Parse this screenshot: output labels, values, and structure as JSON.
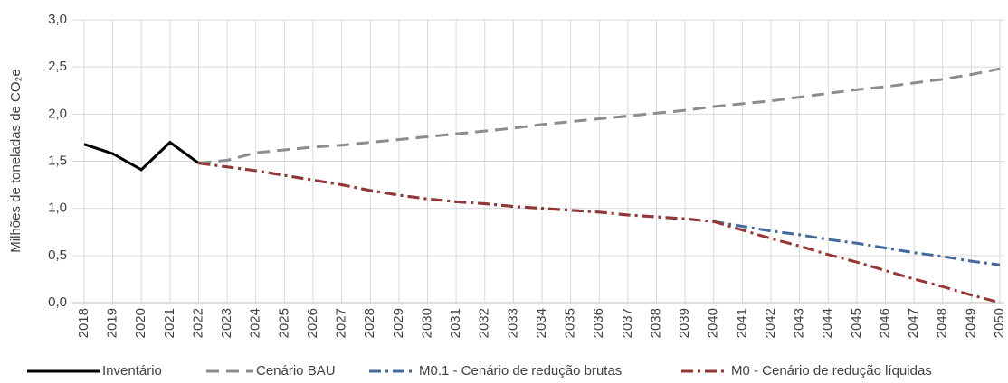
{
  "chart_data": {
    "type": "line",
    "ylabel": "Milhões de toneladas de CO₂e",
    "categories": [
      "2018",
      "2019",
      "2020",
      "2021",
      "2022",
      "2023",
      "2024",
      "2025",
      "2026",
      "2027",
      "2028",
      "2029",
      "2030",
      "2031",
      "2032",
      "2033",
      "2034",
      "2035",
      "2036",
      "2037",
      "2038",
      "2039",
      "2040",
      "2041",
      "2042",
      "2043",
      "2044",
      "2045",
      "2046",
      "2047",
      "2048",
      "2049",
      "2050"
    ],
    "series": [
      {
        "name": "Inventário",
        "color": "#000000",
        "dash": "solid",
        "values": [
          1.68,
          1.58,
          1.41,
          1.7,
          1.48,
          null,
          null,
          null,
          null,
          null,
          null,
          null,
          null,
          null,
          null,
          null,
          null,
          null,
          null,
          null,
          null,
          null,
          null,
          null,
          null,
          null,
          null,
          null,
          null,
          null,
          null,
          null,
          null
        ]
      },
      {
        "name": "Cenário BAU",
        "color": "#8c8c8c",
        "dash": "dashed",
        "values": [
          null,
          null,
          null,
          null,
          1.48,
          1.51,
          1.59,
          1.62,
          1.65,
          1.67,
          1.7,
          1.73,
          1.76,
          1.79,
          1.82,
          1.85,
          1.89,
          1.92,
          1.95,
          1.98,
          2.01,
          2.04,
          2.08,
          2.11,
          2.14,
          2.18,
          2.22,
          2.26,
          2.29,
          2.33,
          2.37,
          2.42,
          2.48
        ]
      },
      {
        "name": "M0.1 - Cenário de redução brutas",
        "color": "#44699a",
        "dash": "dashdot",
        "values": [
          null,
          null,
          null,
          null,
          1.48,
          1.44,
          1.4,
          1.35,
          1.3,
          1.25,
          1.19,
          1.14,
          1.1,
          1.07,
          1.05,
          1.02,
          1.0,
          0.98,
          0.96,
          0.93,
          0.91,
          0.89,
          0.86,
          0.81,
          0.76,
          0.72,
          0.67,
          0.63,
          0.58,
          0.53,
          0.49,
          0.44,
          0.4
        ]
      },
      {
        "name": "M0 - Cenário de redução líquidas",
        "color": "#953735",
        "dash": "dashdot",
        "values": [
          null,
          null,
          null,
          null,
          1.48,
          1.44,
          1.4,
          1.35,
          1.3,
          1.25,
          1.19,
          1.14,
          1.1,
          1.07,
          1.05,
          1.02,
          1.0,
          0.98,
          0.96,
          0.93,
          0.91,
          0.89,
          0.86,
          0.77,
          0.68,
          0.6,
          0.51,
          0.43,
          0.34,
          0.25,
          0.17,
          0.08,
          0.0
        ]
      }
    ],
    "ylim": [
      0,
      3
    ],
    "yticks": [
      {
        "value": 0,
        "label": "0,0"
      },
      {
        "value": 0.5,
        "label": "0,5"
      },
      {
        "value": 1,
        "label": "1,0"
      },
      {
        "value": 1.5,
        "label": "1,5"
      },
      {
        "value": 2,
        "label": "2,0"
      },
      {
        "value": 2.5,
        "label": "2,5"
      },
      {
        "value": 3,
        "label": "3,0"
      }
    ],
    "grid": true,
    "legend": "bottom"
  }
}
